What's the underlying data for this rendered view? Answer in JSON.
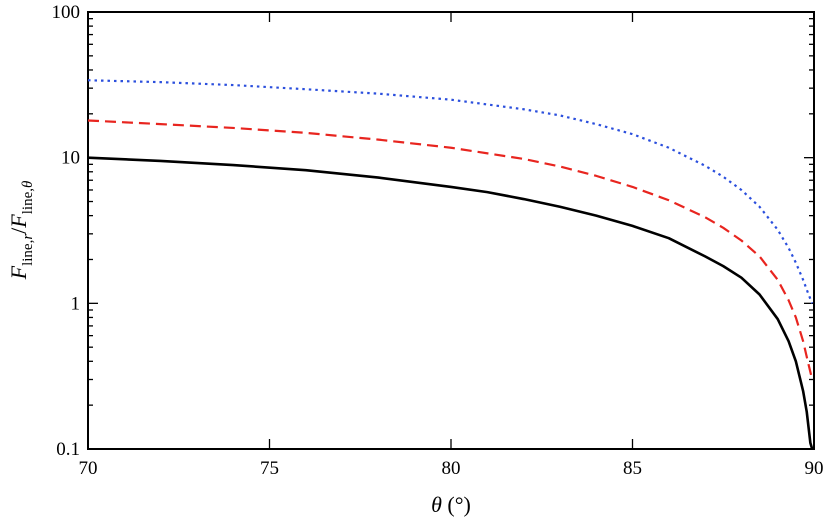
{
  "chart_data": {
    "type": "line",
    "title": "",
    "xlabel": "θ (°)",
    "ylabel": "F_line,r / F_line,θ",
    "xlim": [
      70,
      90
    ],
    "ylim": [
      0.1,
      100
    ],
    "yscale": "log",
    "grid": false,
    "legend": "none",
    "xticks": [
      70,
      75,
      80,
      85,
      90
    ],
    "yticks": [
      0.1,
      1,
      10,
      100
    ],
    "xtick_labels": [
      "70",
      "75",
      "80",
      "85",
      "90"
    ],
    "ytick_labels": [
      "0.1",
      "1",
      "10",
      "100"
    ],
    "series": [
      {
        "style": "solid",
        "color": "#000000",
        "x": [
          70,
          72,
          74,
          76,
          78,
          80,
          81,
          82,
          83,
          84,
          85,
          86,
          87,
          87.5,
          88,
          88.5,
          89,
          89.3,
          89.5,
          89.7,
          89.8,
          89.9,
          89.95
        ],
        "y": [
          10.0,
          9.5,
          8.9,
          8.2,
          7.3,
          6.3,
          5.8,
          5.2,
          4.6,
          4.0,
          3.4,
          2.8,
          2.1,
          1.8,
          1.5,
          1.15,
          0.78,
          0.55,
          0.4,
          0.25,
          0.18,
          0.11,
          0.1
        ]
      },
      {
        "style": "dashed",
        "color": "#e8251f",
        "x": [
          70,
          72,
          74,
          76,
          78,
          80,
          82,
          83,
          84,
          85,
          86,
          87,
          87.5,
          88,
          88.5,
          89,
          89.3,
          89.5,
          89.7,
          89.85,
          89.95
        ],
        "y": [
          18.0,
          17.0,
          16.0,
          14.8,
          13.3,
          11.7,
          9.8,
          8.7,
          7.5,
          6.3,
          5.1,
          3.9,
          3.3,
          2.7,
          2.1,
          1.45,
          1.05,
          0.8,
          0.55,
          0.38,
          0.3
        ]
      },
      {
        "style": "dotted",
        "color": "#2b4fdd",
        "x": [
          70,
          72,
          74,
          76,
          78,
          80,
          82,
          83,
          84,
          85,
          86,
          87,
          87.5,
          88,
          88.5,
          89,
          89.3,
          89.5,
          89.7,
          89.85,
          89.95
        ],
        "y": [
          34.0,
          33.0,
          31.5,
          29.5,
          27.5,
          25.0,
          21.5,
          19.5,
          17.0,
          14.5,
          11.7,
          8.8,
          7.4,
          6.0,
          4.6,
          3.2,
          2.4,
          1.9,
          1.45,
          1.15,
          1.0
        ]
      }
    ]
  }
}
